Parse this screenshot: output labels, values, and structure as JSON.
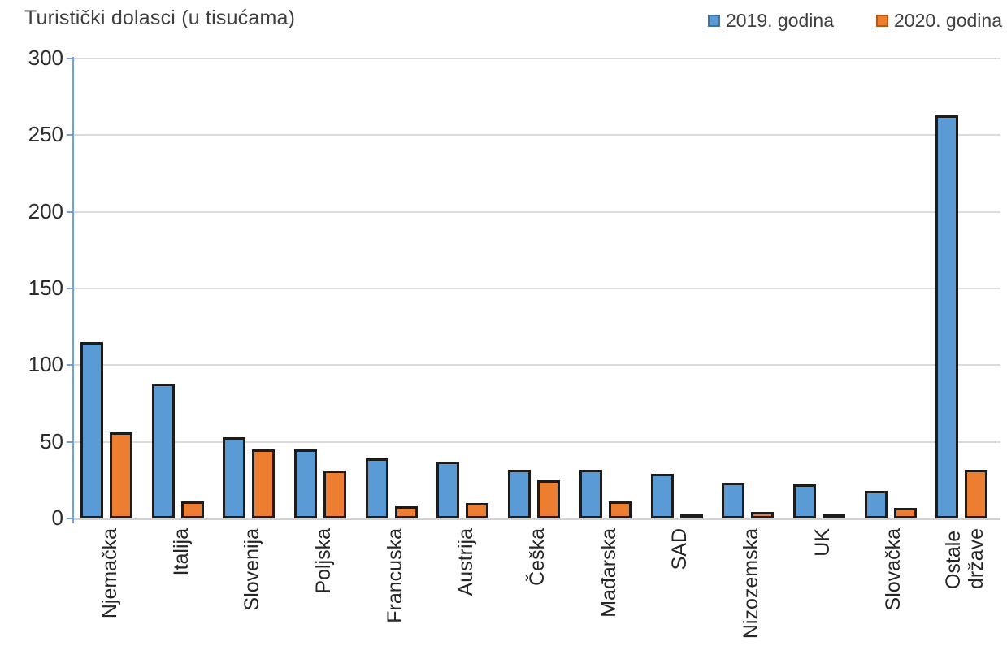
{
  "title": "Turistički dolasci (u tisućama)",
  "legend": {
    "items": [
      {
        "label": "2019. godina",
        "color": "#5B9BD5",
        "border": "#41719C"
      },
      {
        "label": "2020. godina",
        "color": "#ED7D31",
        "border": "#AE5A21"
      }
    ],
    "position": "top-right"
  },
  "colors": {
    "series_2019": "#5B9BD5",
    "series_2020": "#ED7D31",
    "bar_outline": "#1C1C1C",
    "gridline": "#DCDCDC",
    "axis_line": "#74A1D8",
    "text": "#262626"
  },
  "chart_data": {
    "type": "bar",
    "title": "Turistički dolasci (u tisućama)",
    "categories": [
      "Njemačka",
      "Italija",
      "Slovenija",
      "Poljska",
      "Francuska",
      "Austrija",
      "Češka",
      "Mađarska",
      "SAD",
      "Nizozemska",
      "UK",
      "Slovačka",
      "Ostale države"
    ],
    "xlabels_display": [
      "Njemačka",
      "Italija",
      "Slovenija",
      "Poljska",
      "Francuska",
      "Austrija",
      "Češka",
      "Mađarska",
      "SAD",
      "Nizozemska",
      "UK",
      "Slovačka",
      "Ostale\ndržave"
    ],
    "series": [
      {
        "name": "2019. godina",
        "color": "#5B9BD5",
        "values": [
          114,
          87,
          52,
          44,
          38,
          36,
          31,
          31,
          28,
          22,
          21,
          17,
          262
        ]
      },
      {
        "name": "2020. godina",
        "color": "#ED7D31",
        "values": [
          55,
          10,
          44,
          30,
          7,
          9,
          24,
          10,
          2,
          3,
          2,
          6,
          31
        ]
      }
    ],
    "xlabel": "",
    "ylabel": "",
    "ylim": [
      0,
      300
    ],
    "ytick_step": 50,
    "yticks": [
      0,
      50,
      100,
      150,
      200,
      250,
      300
    ],
    "grid": true,
    "grid_axis": "y",
    "legend_position": "top-right"
  }
}
